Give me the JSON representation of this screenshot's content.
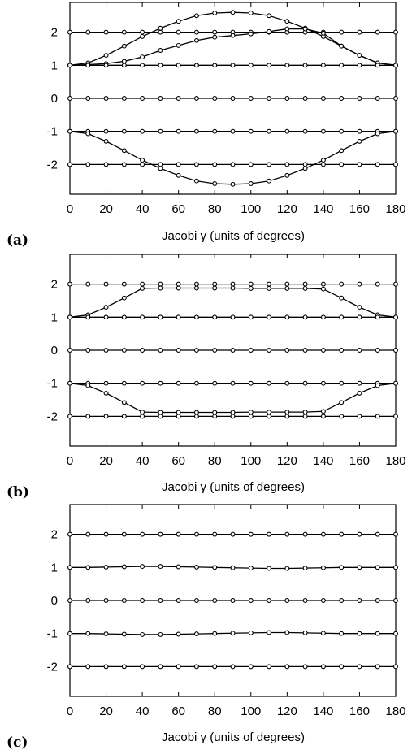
{
  "figure": {
    "panels": [
      {
        "label": "(a)",
        "xlabel": "Jacobi γ (units of degrees)"
      },
      {
        "label": "(b)",
        "xlabel": "Jacobi γ (units of degrees)"
      },
      {
        "label": "(c)",
        "xlabel": "Jacobi γ (units of degrees)"
      }
    ]
  },
  "chart_data": [
    {
      "type": "line",
      "xlabel": "Jacobi γ (units of degrees)",
      "ylabel": "",
      "xlim": [
        0,
        180
      ],
      "ylim": [
        -2.9,
        2.9
      ],
      "xticks": [
        0,
        20,
        40,
        60,
        80,
        100,
        120,
        140,
        160,
        180
      ],
      "yticks": [
        -2,
        -1,
        0,
        1,
        2
      ],
      "marker": "open-circle",
      "x": [
        0,
        10,
        20,
        30,
        40,
        50,
        60,
        70,
        80,
        90,
        100,
        110,
        120,
        130,
        140,
        150,
        160,
        170,
        180
      ],
      "series": [
        {
          "values": [
            2,
            2,
            2,
            2,
            2,
            2,
            2,
            2,
            2,
            2,
            2,
            2,
            2,
            2,
            2,
            2,
            2,
            2,
            2
          ]
        },
        {
          "values": [
            1,
            1.07,
            1.3,
            1.58,
            1.87,
            2.12,
            2.33,
            2.5,
            2.58,
            2.6,
            2.58,
            2.5,
            2.33,
            2.12,
            1.87,
            1.58,
            1.3,
            1.07,
            1
          ]
        },
        {
          "values": [
            1,
            1.02,
            1.05,
            1.12,
            1.25,
            1.45,
            1.6,
            1.75,
            1.85,
            1.9,
            1.95,
            2.02,
            2.1,
            2.1,
            1.97,
            1.58,
            1.3,
            1.07,
            1
          ]
        },
        {
          "values": [
            1,
            1,
            1,
            1,
            1,
            1,
            1,
            1,
            1,
            1,
            1,
            1,
            1,
            1,
            1,
            1,
            1,
            1,
            1
          ]
        },
        {
          "values": [
            0,
            0,
            0,
            0,
            0,
            0,
            0,
            0,
            0,
            0,
            0,
            0,
            0,
            0,
            0,
            0,
            0,
            0,
            0
          ]
        },
        {
          "values": [
            -1,
            -1,
            -1,
            -1,
            -1,
            -1,
            -1,
            -1,
            -1,
            -1,
            -1,
            -1,
            -1,
            -1,
            -1,
            -1,
            -1,
            -1,
            -1
          ]
        },
        {
          "values": [
            -1,
            -1.07,
            -1.3,
            -1.58,
            -1.87,
            -2.12,
            -2.33,
            -2.5,
            -2.58,
            -2.6,
            -2.58,
            -2.5,
            -2.33,
            -2.12,
            -1.87,
            -1.58,
            -1.3,
            -1.07,
            -1
          ]
        },
        {
          "values": [
            -2,
            -2,
            -2,
            -2,
            -2,
            -2,
            -2,
            -2,
            -2,
            -2,
            -2,
            -2,
            -2,
            -2,
            -2,
            -2,
            -2,
            -2,
            -2
          ]
        }
      ]
    },
    {
      "type": "line",
      "xlabel": "Jacobi γ (units of degrees)",
      "ylabel": "",
      "xlim": [
        0,
        180
      ],
      "ylim": [
        -2.9,
        2.9
      ],
      "xticks": [
        0,
        20,
        40,
        60,
        80,
        100,
        120,
        140,
        160,
        180
      ],
      "yticks": [
        -2,
        -1,
        0,
        1,
        2
      ],
      "marker": "open-circle",
      "x": [
        0,
        10,
        20,
        30,
        40,
        50,
        60,
        70,
        80,
        90,
        100,
        110,
        120,
        130,
        140,
        150,
        160,
        170,
        180
      ],
      "series": [
        {
          "values": [
            2,
            2,
            2,
            2,
            2,
            2,
            2,
            2,
            2,
            2,
            2,
            2,
            2,
            2,
            2,
            2,
            2,
            2,
            2
          ]
        },
        {
          "values": [
            1,
            1.07,
            1.3,
            1.58,
            1.87,
            1.88,
            1.88,
            1.88,
            1.88,
            1.88,
            1.87,
            1.87,
            1.87,
            1.87,
            1.85,
            1.58,
            1.3,
            1.07,
            1
          ]
        },
        {
          "values": [
            1,
            1,
            1,
            1,
            1,
            1,
            1,
            1,
            1,
            1,
            1,
            1,
            1,
            1,
            1,
            1,
            1,
            1,
            1
          ]
        },
        {
          "values": [
            0,
            0,
            0,
            0,
            0,
            0,
            0,
            0,
            0,
            0,
            0,
            0,
            0,
            0,
            0,
            0,
            0,
            0,
            0
          ]
        },
        {
          "values": [
            -1,
            -1,
            -1,
            -1,
            -1,
            -1,
            -1,
            -1,
            -1,
            -1,
            -1,
            -1,
            -1,
            -1,
            -1,
            -1,
            -1,
            -1,
            -1
          ]
        },
        {
          "values": [
            -1,
            -1.07,
            -1.3,
            -1.58,
            -1.87,
            -1.88,
            -1.88,
            -1.88,
            -1.88,
            -1.88,
            -1.87,
            -1.87,
            -1.87,
            -1.87,
            -1.85,
            -1.58,
            -1.3,
            -1.07,
            -1
          ]
        },
        {
          "values": [
            -2,
            -2,
            -2,
            -2,
            -2,
            -2,
            -2,
            -2,
            -2,
            -2,
            -2,
            -2,
            -2,
            -2,
            -2,
            -2,
            -2,
            -2,
            -2
          ]
        }
      ]
    },
    {
      "type": "line",
      "xlabel": "Jacobi γ (units of degrees)",
      "ylabel": "",
      "xlim": [
        0,
        180
      ],
      "ylim": [
        -2.9,
        2.9
      ],
      "xticks": [
        0,
        20,
        40,
        60,
        80,
        100,
        120,
        140,
        160,
        180
      ],
      "yticks": [
        -2,
        -1,
        0,
        1,
        2
      ],
      "marker": "open-circle",
      "x": [
        0,
        10,
        20,
        30,
        40,
        50,
        60,
        70,
        80,
        90,
        100,
        110,
        120,
        130,
        140,
        150,
        160,
        170,
        180
      ],
      "series": [
        {
          "values": [
            2,
            2,
            2,
            2,
            2,
            2,
            2,
            2,
            2,
            2,
            2,
            2,
            2,
            2,
            2,
            2,
            2,
            2,
            2
          ]
        },
        {
          "values": [
            1,
            1,
            1.01,
            1.02,
            1.03,
            1.03,
            1.02,
            1.01,
            1,
            0.99,
            0.98,
            0.97,
            0.97,
            0.98,
            0.99,
            1,
            1,
            1,
            1
          ]
        },
        {
          "values": [
            0,
            0,
            0,
            0,
            0,
            0,
            0,
            0,
            0,
            0,
            0,
            0,
            0,
            0,
            0,
            0,
            0,
            0,
            0
          ]
        },
        {
          "values": [
            -1,
            -1,
            -1.01,
            -1.02,
            -1.03,
            -1.03,
            -1.02,
            -1.01,
            -1,
            -0.99,
            -0.98,
            -0.97,
            -0.97,
            -0.98,
            -0.99,
            -1,
            -1,
            -1,
            -1
          ]
        },
        {
          "values": [
            -2,
            -2,
            -2,
            -2,
            -2,
            -2,
            -2,
            -2,
            -2,
            -2,
            -2,
            -2,
            -2,
            -2,
            -2,
            -2,
            -2,
            -2,
            -2
          ]
        }
      ]
    }
  ]
}
